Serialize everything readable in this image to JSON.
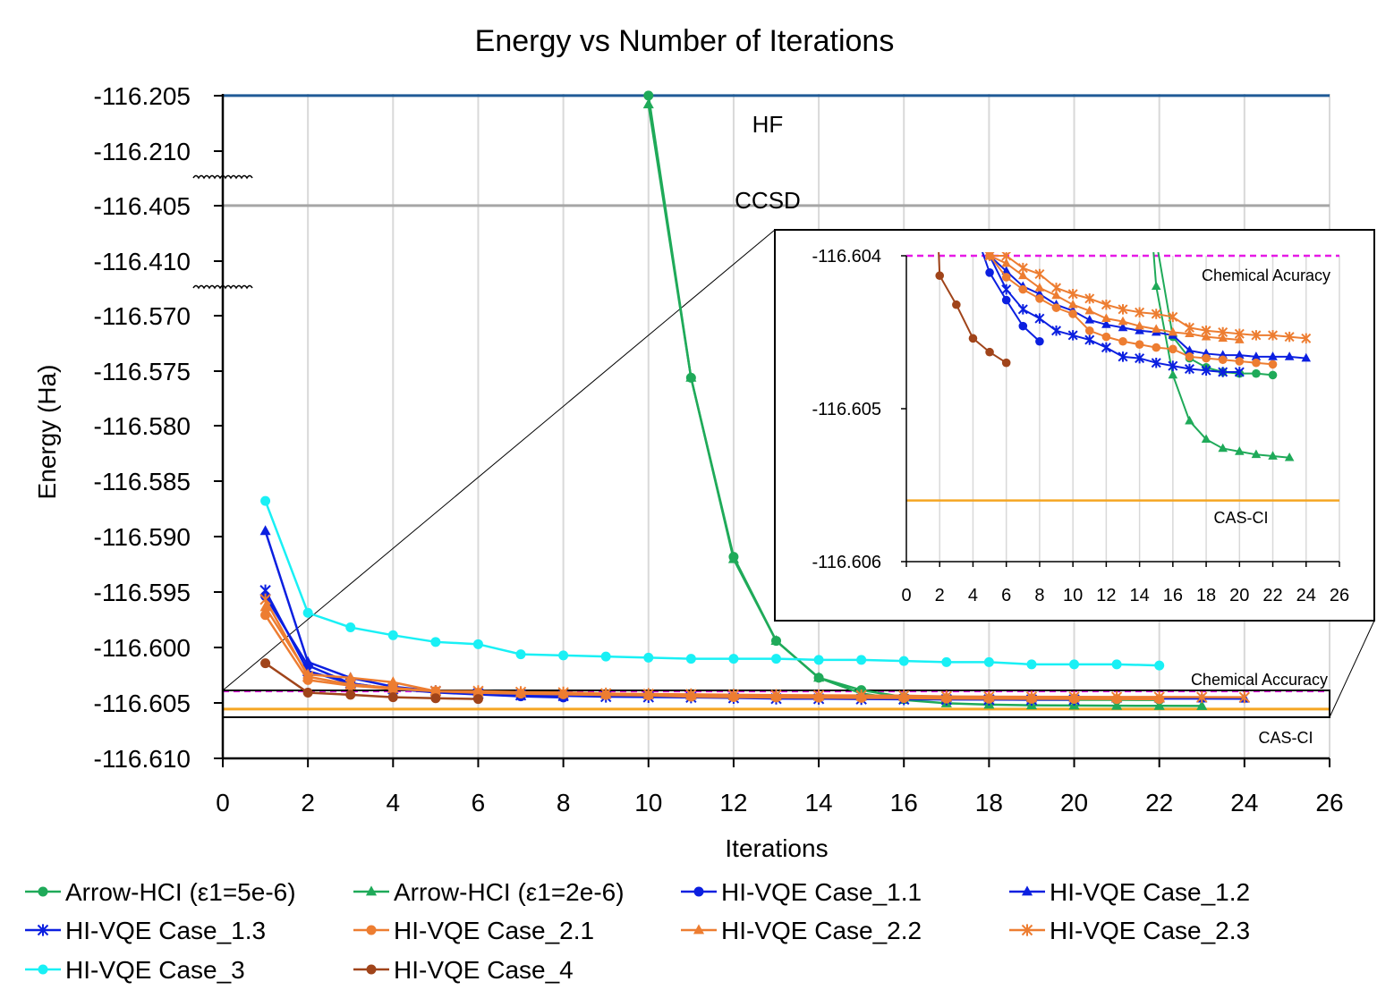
{
  "chart_data": {
    "type": "line",
    "title": "Energy vs Number of Iterations",
    "xlabel": "Iterations",
    "ylabel": "Energy (Ha)",
    "xlim": [
      0,
      26
    ],
    "xticks": [
      "0",
      "2",
      "4",
      "6",
      "8",
      "10",
      "12",
      "14",
      "16",
      "18",
      "20",
      "22",
      "24",
      "26"
    ],
    "y_axis_broken": true,
    "ytick_labels": [
      "-116.205",
      "-116.210",
      "-116.405",
      "-116.410",
      "-116.570",
      "-116.575",
      "-116.580",
      "-116.585",
      "-116.590",
      "-116.595",
      "-116.600",
      "-116.605",
      "-116.610"
    ],
    "grid": "vertical",
    "legend_position": "bottom",
    "reference_lines": [
      {
        "label": "HF",
        "value": -116.2055,
        "color": "#1f5a96"
      },
      {
        "label": "CCSD",
        "value": -116.4055,
        "color": "#a6a6a6"
      },
      {
        "label": "Chemical Accuracy",
        "value": -116.604,
        "color": "#e619e6",
        "style": "dashed"
      },
      {
        "label": "CAS-CI",
        "value": -116.6056,
        "color": "#f5a623"
      }
    ],
    "series": [
      {
        "name": "Arrow-HCI (ε1=5e-6)",
        "color": "#1faa59",
        "marker": "circle",
        "x": [
          10,
          11,
          12,
          13,
          14,
          15,
          16,
          17,
          18,
          19,
          20,
          21,
          22
        ],
        "y": [
          -116.2055,
          -116.576,
          -116.592,
          -116.5995,
          -116.6028,
          -116.6039,
          -116.60453,
          -116.60467,
          -116.60473,
          -116.60476,
          -116.60477,
          -116.60477,
          -116.60478
        ]
      },
      {
        "name": "Arrow-HCI (ε1=2e-6)",
        "color": "#1faa59",
        "marker": "triangle",
        "x": [
          10,
          11,
          12,
          13,
          14,
          15,
          16,
          17,
          18,
          19,
          20,
          21,
          22,
          23
        ],
        "y": [
          -116.2063,
          -116.576,
          -116.5922,
          -116.5995,
          -116.6028,
          -116.6042,
          -116.60478,
          -116.60508,
          -116.6052,
          -116.60526,
          -116.60528,
          -116.6053,
          -116.60531,
          -116.60532
        ]
      },
      {
        "name": "HI-VQE Case_1.1",
        "color": "#0b1fe0",
        "marker": "circle",
        "x": [
          1,
          2,
          3,
          4,
          5,
          6,
          7,
          8
        ],
        "y": [
          -116.5955,
          -116.6017,
          -116.6033,
          -116.6038,
          -116.60411,
          -116.60429,
          -116.60446,
          -116.60456
        ]
      },
      {
        "name": "HI-VQE Case_1.2",
        "color": "#0b1fe0",
        "marker": "triangle",
        "x": [
          1,
          2,
          3,
          4,
          5,
          6,
          7,
          8,
          9,
          10,
          11,
          12,
          13,
          14,
          15,
          16,
          17,
          18,
          19,
          20,
          21,
          22,
          23,
          24
        ],
        "y": [
          -116.5897,
          -116.6014,
          -116.6028,
          -116.6036,
          -116.604,
          -116.6041,
          -116.6042,
          -116.60425,
          -116.60432,
          -116.60436,
          -116.60442,
          -116.60445,
          -116.60447,
          -116.60449,
          -116.6045,
          -116.60452,
          -116.60462,
          -116.60464,
          -116.60465,
          -116.60465,
          -116.60466,
          -116.60466,
          -116.60466,
          -116.60467
        ]
      },
      {
        "name": "HI-VQE Case_1.3",
        "color": "#0b1fe0",
        "marker": "asterisk",
        "x": [
          1,
          2,
          3,
          4,
          5,
          6,
          7,
          8,
          9,
          10,
          11,
          12,
          13,
          14,
          15,
          16,
          17,
          18,
          19,
          20
        ],
        "y": [
          -116.595,
          -116.6022,
          -116.6033,
          -116.6038,
          -116.604,
          -116.60422,
          -116.60435,
          -116.60441,
          -116.60449,
          -116.60452,
          -116.60455,
          -116.6046,
          -116.60466,
          -116.60467,
          -116.6047,
          -116.60472,
          -116.60474,
          -116.60475,
          -116.60476,
          -116.60476
        ]
      },
      {
        "name": "HI-VQE Case_2.1",
        "color": "#ed7d31",
        "marker": "circle",
        "x": [
          1,
          2,
          3,
          4,
          5,
          6,
          7,
          8,
          9,
          10,
          11,
          12,
          13,
          14,
          15,
          16,
          17,
          18,
          19,
          20,
          21,
          22
        ],
        "y": [
          -116.5972,
          -116.603,
          -116.6035,
          -116.6038,
          -116.604,
          -116.60414,
          -116.60422,
          -116.60428,
          -116.60434,
          -116.60438,
          -116.60449,
          -116.60453,
          -116.60456,
          -116.60458,
          -116.6046,
          -116.60461,
          -116.60466,
          -116.60467,
          -116.60468,
          -116.60469,
          -116.6047,
          -116.60471
        ]
      },
      {
        "name": "HI-VQE Case_2.2",
        "color": "#ed7d31",
        "marker": "triangle",
        "x": [
          1,
          2,
          3,
          4,
          5,
          6,
          7,
          8,
          9,
          10,
          11,
          12,
          13,
          14,
          15,
          16,
          17,
          18,
          19,
          20
        ],
        "y": [
          -116.5965,
          -116.6025,
          -116.6028,
          -116.6032,
          -116.604,
          -116.60405,
          -116.60413,
          -116.60421,
          -116.60426,
          -116.60432,
          -116.60436,
          -116.60441,
          -116.60443,
          -116.60446,
          -116.60448,
          -116.6045,
          -116.60451,
          -116.60453,
          -116.60454,
          -116.60455
        ]
      },
      {
        "name": "HI-VQE Case_2.3",
        "color": "#ed7d31",
        "marker": "asterisk",
        "x": [
          1,
          2,
          3,
          4,
          5,
          6,
          7,
          8,
          9,
          10,
          11,
          12,
          13,
          14,
          15,
          16,
          17,
          18,
          19,
          20,
          21,
          22,
          23,
          24
        ],
        "y": [
          -116.5958,
          -116.6027,
          -116.6034,
          -116.6037,
          -116.604,
          -116.604,
          -116.60408,
          -116.60412,
          -116.60421,
          -116.60425,
          -116.60428,
          -116.60432,
          -116.60435,
          -116.60437,
          -116.60438,
          -116.6044,
          -116.60447,
          -116.60449,
          -116.6045,
          -116.60451,
          -116.60452,
          -116.60452,
          -116.60453,
          -116.60454
        ]
      },
      {
        "name": "HI-VQE Case_3",
        "color": "#19f0f5",
        "marker": "circle",
        "x": [
          1,
          2,
          3,
          4,
          5,
          6,
          7,
          8,
          9,
          10,
          11,
          12,
          13,
          14,
          15,
          16,
          17,
          18,
          19,
          20,
          21,
          22
        ],
        "y": [
          -116.587,
          -116.597,
          -116.5983,
          -116.599,
          -116.5996,
          -116.5998,
          -116.6007,
          -116.6008,
          -116.6009,
          -116.601,
          -116.6011,
          -116.6011,
          -116.6011,
          -116.6012,
          -116.6012,
          -116.6013,
          -116.6014,
          -116.6014,
          -116.6016,
          -116.6016,
          -116.6016,
          -116.6017
        ]
      },
      {
        "name": "HI-VQE Case_4",
        "color": "#a0441a",
        "marker": "circle",
        "x": [
          1,
          2,
          3,
          4,
          5,
          6
        ],
        "y": [
          -116.6015,
          -116.60413,
          -116.60432,
          -116.60454,
          -116.60463,
          -116.6047
        ]
      }
    ],
    "inset": {
      "xlim": [
        0,
        26
      ],
      "ylim": [
        -116.606,
        -116.604
      ],
      "xticks": [
        "0",
        "2",
        "4",
        "6",
        "8",
        "10",
        "12",
        "14",
        "16",
        "18",
        "20",
        "22",
        "24",
        "26"
      ],
      "ytick_labels": [
        "-116.604",
        "-116.605",
        "-116.606"
      ],
      "labels": [
        "Chemical Acuracy",
        "CAS-CI"
      ]
    }
  }
}
